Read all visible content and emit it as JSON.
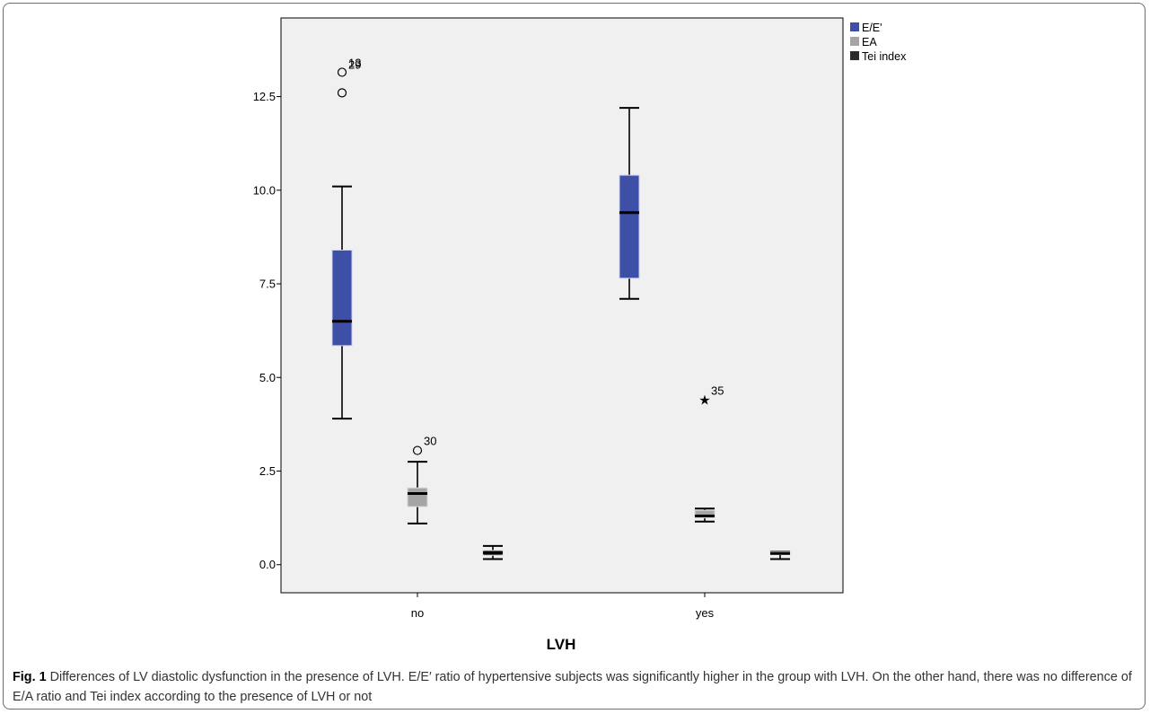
{
  "chart_data": {
    "type": "boxplot",
    "xlabel": "LVH",
    "ylabel": "",
    "ylim": [
      -0.75,
      14.6
    ],
    "yticks": [
      {
        "value": 0.0,
        "label": "0.0"
      },
      {
        "value": 2.5,
        "label": "2.5"
      },
      {
        "value": 5.0,
        "label": "5.0"
      },
      {
        "value": 7.5,
        "label": "7.5"
      },
      {
        "value": 10.0,
        "label": "10.0"
      },
      {
        "value": 12.5,
        "label": "12.5"
      }
    ],
    "categories": [
      "no",
      "yes"
    ],
    "legend": {
      "position": "right-top"
    },
    "series": [
      {
        "name": "E/E'",
        "color": "#3d4fa6",
        "boxes": [
          {
            "min": 3.9,
            "q1": 5.85,
            "median": 6.5,
            "q3": 8.4,
            "max": 10.1,
            "outliers": [
              {
                "value": 12.6,
                "marker": "circle",
                "label": ""
              },
              {
                "value": 13.15,
                "marker": "circle",
                "label": "13"
              },
              {
                "value": 13.1,
                "marker": "none",
                "label": "29"
              }
            ]
          },
          {
            "min": 7.1,
            "q1": 7.65,
            "median": 9.4,
            "q3": 10.4,
            "max": 12.2,
            "outliers": []
          }
        ]
      },
      {
        "name": "EA",
        "color": "#a5a5a5",
        "boxes": [
          {
            "min": 1.1,
            "q1": 1.55,
            "median": 1.9,
            "q3": 2.05,
            "max": 2.75,
            "outliers": [
              {
                "value": 3.05,
                "marker": "circle",
                "label": "30"
              }
            ]
          },
          {
            "min": 1.15,
            "q1": 1.25,
            "median": 1.3,
            "q3": 1.45,
            "max": 1.5,
            "outliers": [
              {
                "value": 4.4,
                "marker": "star",
                "label": "35"
              }
            ]
          }
        ]
      },
      {
        "name": "Tei index",
        "color": "#2b2b2b",
        "boxes": [
          {
            "min": 0.15,
            "q1": 0.25,
            "median": 0.32,
            "q3": 0.38,
            "max": 0.5,
            "outliers": []
          },
          {
            "min": 0.15,
            "q1": 0.27,
            "median": 0.3,
            "q3": 0.35,
            "max": 0.35,
            "outliers": []
          }
        ]
      }
    ]
  },
  "caption": {
    "label": "Fig. 1",
    "text": "Differences of LV diastolic dysfunction in the presence of LVH. E/E′ ratio of hypertensive subjects was significantly higher in the group with LVH. On the other hand, there was no difference of E/A ratio and Tei index according to the presence of LVH or not"
  }
}
